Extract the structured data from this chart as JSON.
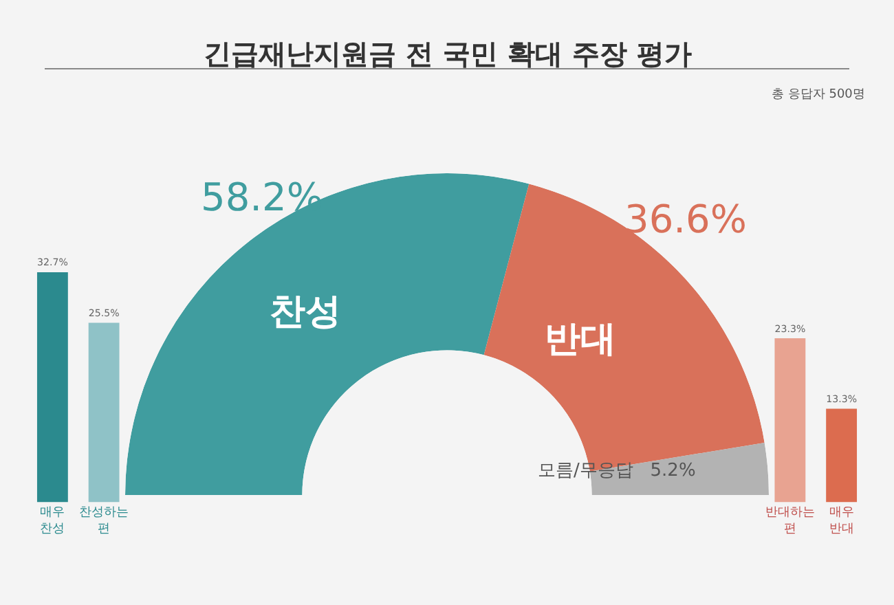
{
  "chart_data": [
    {
      "type": "bar",
      "categories": [
        "매우 찬성",
        "찬성하는 편"
      ],
      "values": [
        32.7,
        25.5
      ],
      "colors": [
        "#2b8a8e",
        "#8fc2c7"
      ],
      "value_labels": [
        "32.7%",
        "25.5%"
      ]
    },
    {
      "type": "donut",
      "title": "긴급재난지원금 전 국민 확대 주장 평가",
      "annotations": [
        "총 응답자 500명"
      ],
      "categories": [
        "찬성",
        "반대",
        "모름/무응답"
      ],
      "values": [
        58.2,
        36.6,
        5.2
      ],
      "colors": [
        "#409d9f",
        "#d9715a",
        "#b3b3b3"
      ],
      "value_labels": [
        "58.2%",
        "36.6%",
        "5.2%"
      ]
    },
    {
      "type": "bar",
      "categories": [
        "반대하는 편",
        "매우 반대"
      ],
      "values": [
        23.3,
        13.3
      ],
      "colors": [
        "#e8a391",
        "#dc6c4f"
      ],
      "value_labels": [
        "23.3%",
        "13.3%"
      ]
    }
  ]
}
